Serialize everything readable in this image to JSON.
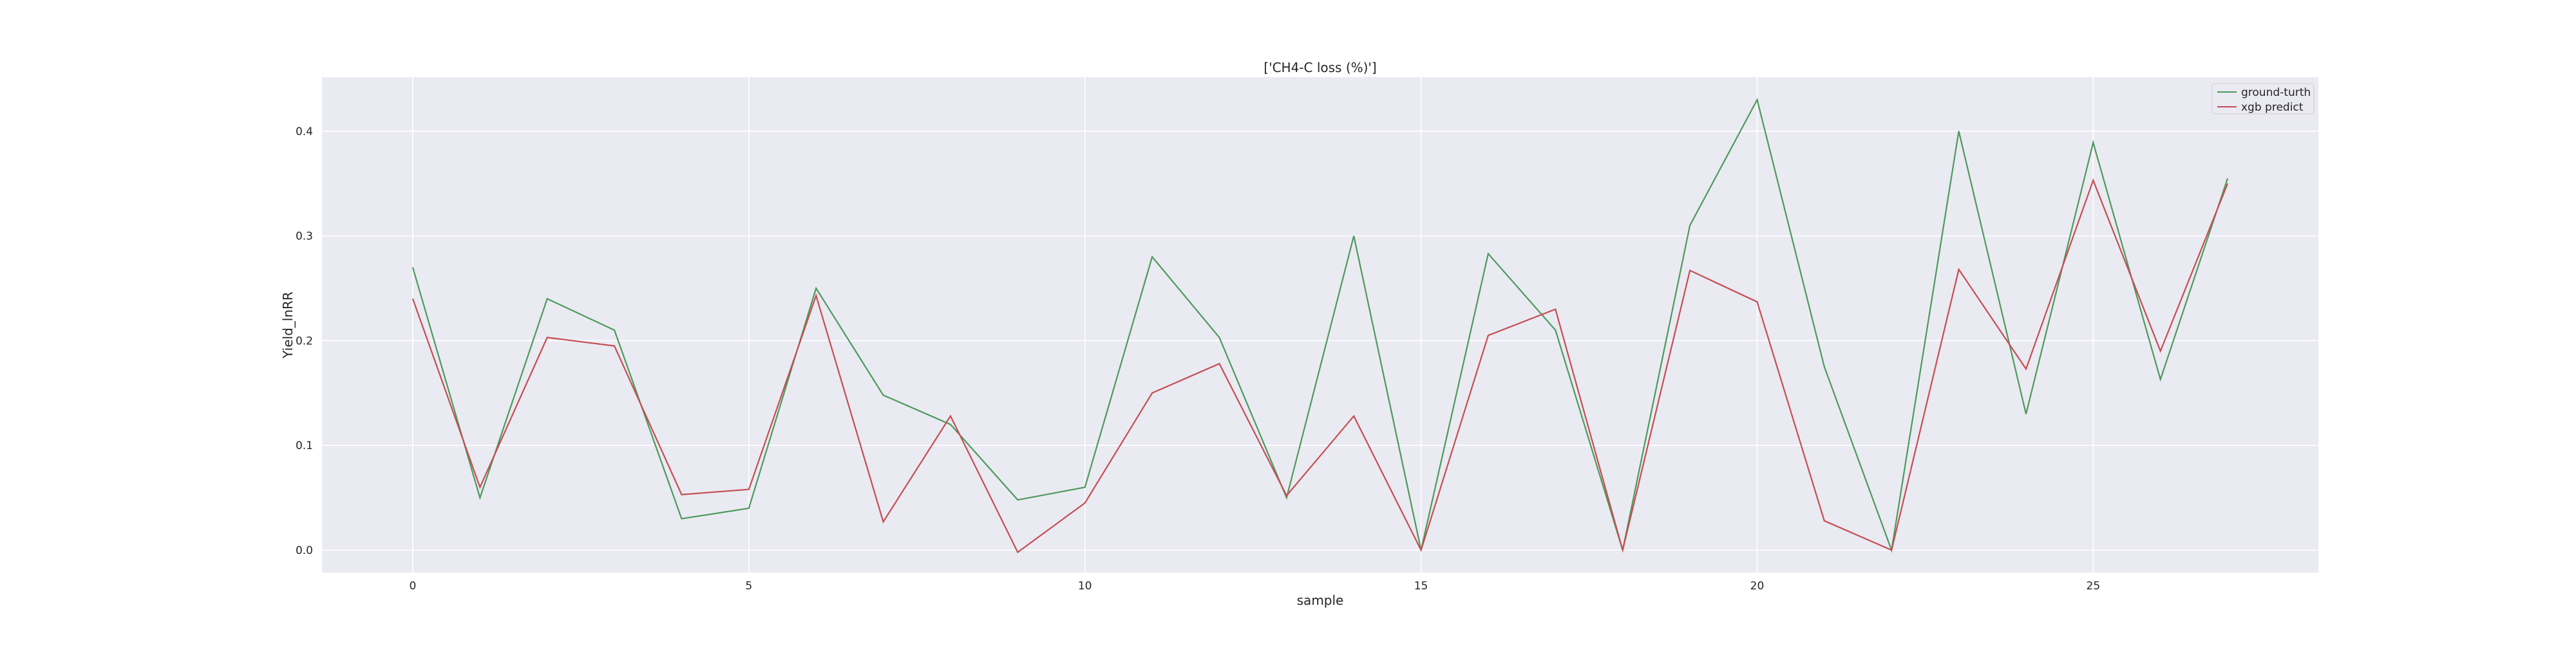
{
  "chart_data": {
    "type": "line",
    "title": "['CH4-C loss (%)']",
    "xlabel": "sample",
    "ylabel": "Yield_lnRR",
    "xlim": [
      -1.35,
      28.35
    ],
    "ylim": [
      -0.0215,
      0.4515
    ],
    "xticks": [
      0,
      5,
      10,
      15,
      20,
      25
    ],
    "yticks": [
      0.0,
      0.1,
      0.2,
      0.3,
      0.4
    ],
    "ytick_labels": [
      "0.0",
      "0.1",
      "0.2",
      "0.3",
      "0.4"
    ],
    "grid": true,
    "legend_position": "top-right",
    "x": [
      0,
      1,
      2,
      3,
      4,
      5,
      6,
      7,
      8,
      9,
      10,
      11,
      12,
      13,
      14,
      15,
      16,
      17,
      18,
      19,
      20,
      21,
      22,
      23,
      24,
      25,
      26,
      27
    ],
    "series": [
      {
        "name": "ground-turth",
        "color": "#4c9a5b",
        "values": [
          0.27,
          0.05,
          0.24,
          0.21,
          0.03,
          0.04,
          0.25,
          0.148,
          0.12,
          0.048,
          0.06,
          0.28,
          0.203,
          0.05,
          0.3,
          0.0,
          0.283,
          0.21,
          0.0,
          0.31,
          0.43,
          0.175,
          0.0,
          0.4,
          0.13,
          0.389,
          0.163,
          0.355
        ]
      },
      {
        "name": "xgb predict",
        "color": "#c44e52",
        "values": [
          0.24,
          0.06,
          0.203,
          0.195,
          0.053,
          0.058,
          0.243,
          0.027,
          0.128,
          -0.002,
          0.045,
          0.15,
          0.178,
          0.052,
          0.128,
          0.0,
          0.205,
          0.23,
          0.0,
          0.267,
          0.237,
          0.028,
          0.0,
          0.268,
          0.173,
          0.353,
          0.19,
          0.35
        ]
      }
    ]
  },
  "style": {
    "plot_background": "#eaeaf2",
    "grid_color": "#ffffff",
    "page_background": "#ffffff"
  }
}
